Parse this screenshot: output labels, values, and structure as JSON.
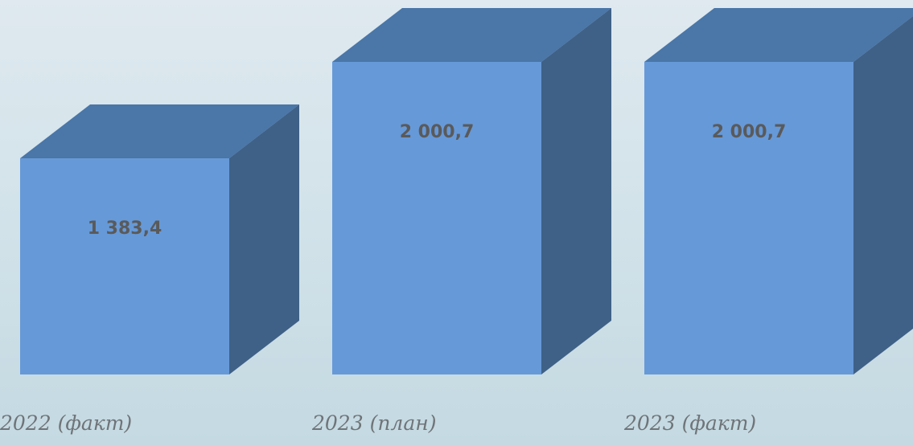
{
  "chart_data": {
    "type": "bar",
    "categories": [
      "2022 (факт)",
      "2023 (план)",
      "2023 (факт)"
    ],
    "values": [
      1383.4,
      2000.7,
      2000.7
    ],
    "value_labels": [
      "1 383,4",
      "2 000,7",
      "2 000,7"
    ],
    "title": "",
    "xlabel": "",
    "ylabel": "",
    "ylim": [
      0,
      2000.7
    ],
    "grid": false,
    "legend": "none",
    "style": "3d-columns",
    "colors": {
      "front": "#6699d8",
      "top": "#4a76a8",
      "side": "#3f6187",
      "value_text": "#5a5a5a",
      "category_text": "#6f7478"
    }
  }
}
